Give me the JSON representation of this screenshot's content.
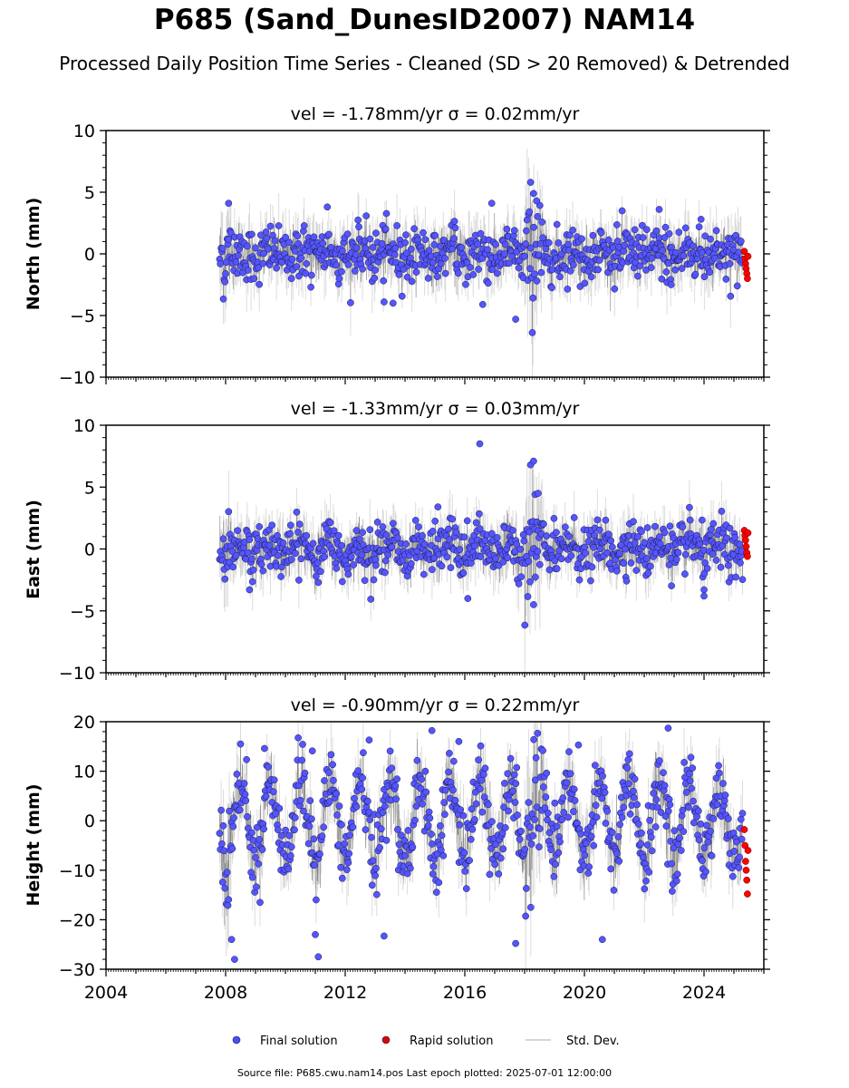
{
  "header": {
    "title": "P685 (Sand_DunesID2007) NAM14",
    "subtitle": "Processed Daily Position Time Series - Cleaned (SD > 20 Removed) & Detrended"
  },
  "footer": {
    "source": "Source file: P685.cwu.nam14.pos  Last epoch plotted: 2025-07-01 12:00:00"
  },
  "legend": [
    {
      "label": "Final solution",
      "color": "#4b4bff",
      "marker": "circle"
    },
    {
      "label": "Rapid solution",
      "color": "#e00000",
      "marker": "circle"
    },
    {
      "label": "Std. Dev.",
      "color": "#c8c8c8",
      "marker": "line"
    }
  ],
  "colors": {
    "final": "#5555ff",
    "final_edge": "#1a1a4a",
    "rapid": "#ff0000",
    "std": "#9a9a9a",
    "trace": "#555555"
  },
  "chart_data": [
    {
      "type": "scatter",
      "title": "vel = -1.78mm/yr   σ = 0.02mm/yr",
      "ylabel": "North (mm)",
      "xlim": [
        2004.0,
        2026.0
      ],
      "ylim": [
        -10,
        10
      ],
      "yticks": [
        -10,
        -5,
        0,
        5,
        10
      ],
      "ytick_labels": [
        "−10",
        "−5",
        "0",
        "5",
        "10"
      ],
      "x_range_final": [
        2007.8,
        2025.3
      ],
      "x_range_rapid": [
        2025.3,
        2025.5
      ],
      "amplitude_mm": 1.1,
      "seasonal_mm": 0.3,
      "std_mm": 1.5,
      "series": [
        {
          "name": "Final solution",
          "outliers": [
            [
              2008.1,
              4.1
            ],
            [
              2011.4,
              3.8
            ],
            [
              2013.3,
              -3.9
            ],
            [
              2013.6,
              -4.0
            ],
            [
              2016.6,
              -4.1
            ],
            [
              2016.9,
              4.1
            ],
            [
              2017.7,
              -5.3
            ],
            [
              2018.2,
              5.8
            ],
            [
              2018.3,
              4.9
            ],
            [
              2018.4,
              4.3
            ],
            [
              2022.5,
              3.6
            ],
            [
              2023.9,
              2.8
            ],
            [
              2022.9,
              -2.5
            ]
          ]
        },
        {
          "name": "Rapid solution",
          "values": [
            [
              2025.35,
              0.2
            ],
            [
              2025.37,
              -0.4
            ],
            [
              2025.39,
              -0.8
            ],
            [
              2025.41,
              -1.2
            ],
            [
              2025.43,
              -1.6
            ],
            [
              2025.45,
              -2.0
            ],
            [
              2025.47,
              -0.2
            ]
          ]
        }
      ]
    },
    {
      "type": "scatter",
      "title": "vel = -1.33mm/yr   σ = 0.03mm/yr",
      "ylabel": "East (mm)",
      "xlim": [
        2004.0,
        2026.0
      ],
      "ylim": [
        -10,
        10
      ],
      "yticks": [
        -10,
        -5,
        0,
        5,
        10
      ],
      "ytick_labels": [
        "−10",
        "−5",
        "0",
        "5",
        "10"
      ],
      "x_range_final": [
        2007.8,
        2025.3
      ],
      "x_range_rapid": [
        2025.3,
        2025.5
      ],
      "amplitude_mm": 1.0,
      "seasonal_mm": 0.5,
      "std_mm": 1.4,
      "series": [
        {
          "name": "Final solution",
          "outliers": [
            [
              2016.5,
              8.5
            ],
            [
              2018.2,
              6.8
            ],
            [
              2018.3,
              7.1
            ],
            [
              2018.35,
              4.4
            ],
            [
              2018.45,
              4.5
            ],
            [
              2018.3,
              -4.5
            ],
            [
              2016.1,
              -4.0
            ],
            [
              2015.1,
              3.4
            ],
            [
              2024.0,
              -3.3
            ],
            [
              2024.0,
              -3.8
            ],
            [
              2008.8,
              -3.3
            ],
            [
              2011.1,
              -2.7
            ]
          ]
        },
        {
          "name": "Rapid solution",
          "values": [
            [
              2025.35,
              1.5
            ],
            [
              2025.37,
              1.1
            ],
            [
              2025.39,
              0.7
            ],
            [
              2025.41,
              0.2
            ],
            [
              2025.43,
              -0.3
            ],
            [
              2025.45,
              -0.6
            ],
            [
              2025.47,
              1.3
            ]
          ]
        }
      ]
    },
    {
      "type": "scatter",
      "title": "vel = -0.90mm/yr   σ = 0.22mm/yr",
      "ylabel": "Height (mm)",
      "xlim": [
        2004.0,
        2026.0
      ],
      "ylim": [
        -30,
        20
      ],
      "yticks": [
        -30,
        -20,
        -10,
        0,
        10,
        20
      ],
      "ytick_labels": [
        "−30",
        "−20",
        "−10",
        "0",
        "10",
        "20"
      ],
      "xticks": [
        2004,
        2008,
        2012,
        2016,
        2020,
        2024
      ],
      "xtick_labels": [
        "2004",
        "2008",
        "2012",
        "2016",
        "2020",
        "2024"
      ],
      "x_range_final": [
        2007.8,
        2025.3
      ],
      "x_range_rapid": [
        2025.3,
        2025.5
      ],
      "amplitude_mm": 3.5,
      "seasonal_mm": 8.0,
      "std_mm": 4.0,
      "series": [
        {
          "name": "Final solution",
          "outliers": [
            [
              2008.3,
              -28.0
            ],
            [
              2008.2,
              -24.0
            ],
            [
              2011.1,
              -27.5
            ],
            [
              2011.0,
              -23.0
            ],
            [
              2013.3,
              -23.3
            ],
            [
              2012.8,
              16.3
            ],
            [
              2014.9,
              18.2
            ],
            [
              2015.8,
              16.0
            ],
            [
              2020.6,
              -24.0
            ],
            [
              2022.8,
              18.7
            ],
            [
              2019.8,
              15.3
            ],
            [
              2009.3,
              14.6
            ],
            [
              2010.9,
              14.1
            ],
            [
              2017.7,
              -24.8
            ]
          ]
        },
        {
          "name": "Rapid solution",
          "values": [
            [
              2025.35,
              -1.8
            ],
            [
              2025.37,
              -5.0
            ],
            [
              2025.39,
              -8.2
            ],
            [
              2025.41,
              -10.0
            ],
            [
              2025.43,
              -12.0
            ],
            [
              2025.45,
              -14.8
            ],
            [
              2025.47,
              -6.0
            ]
          ]
        }
      ]
    }
  ]
}
